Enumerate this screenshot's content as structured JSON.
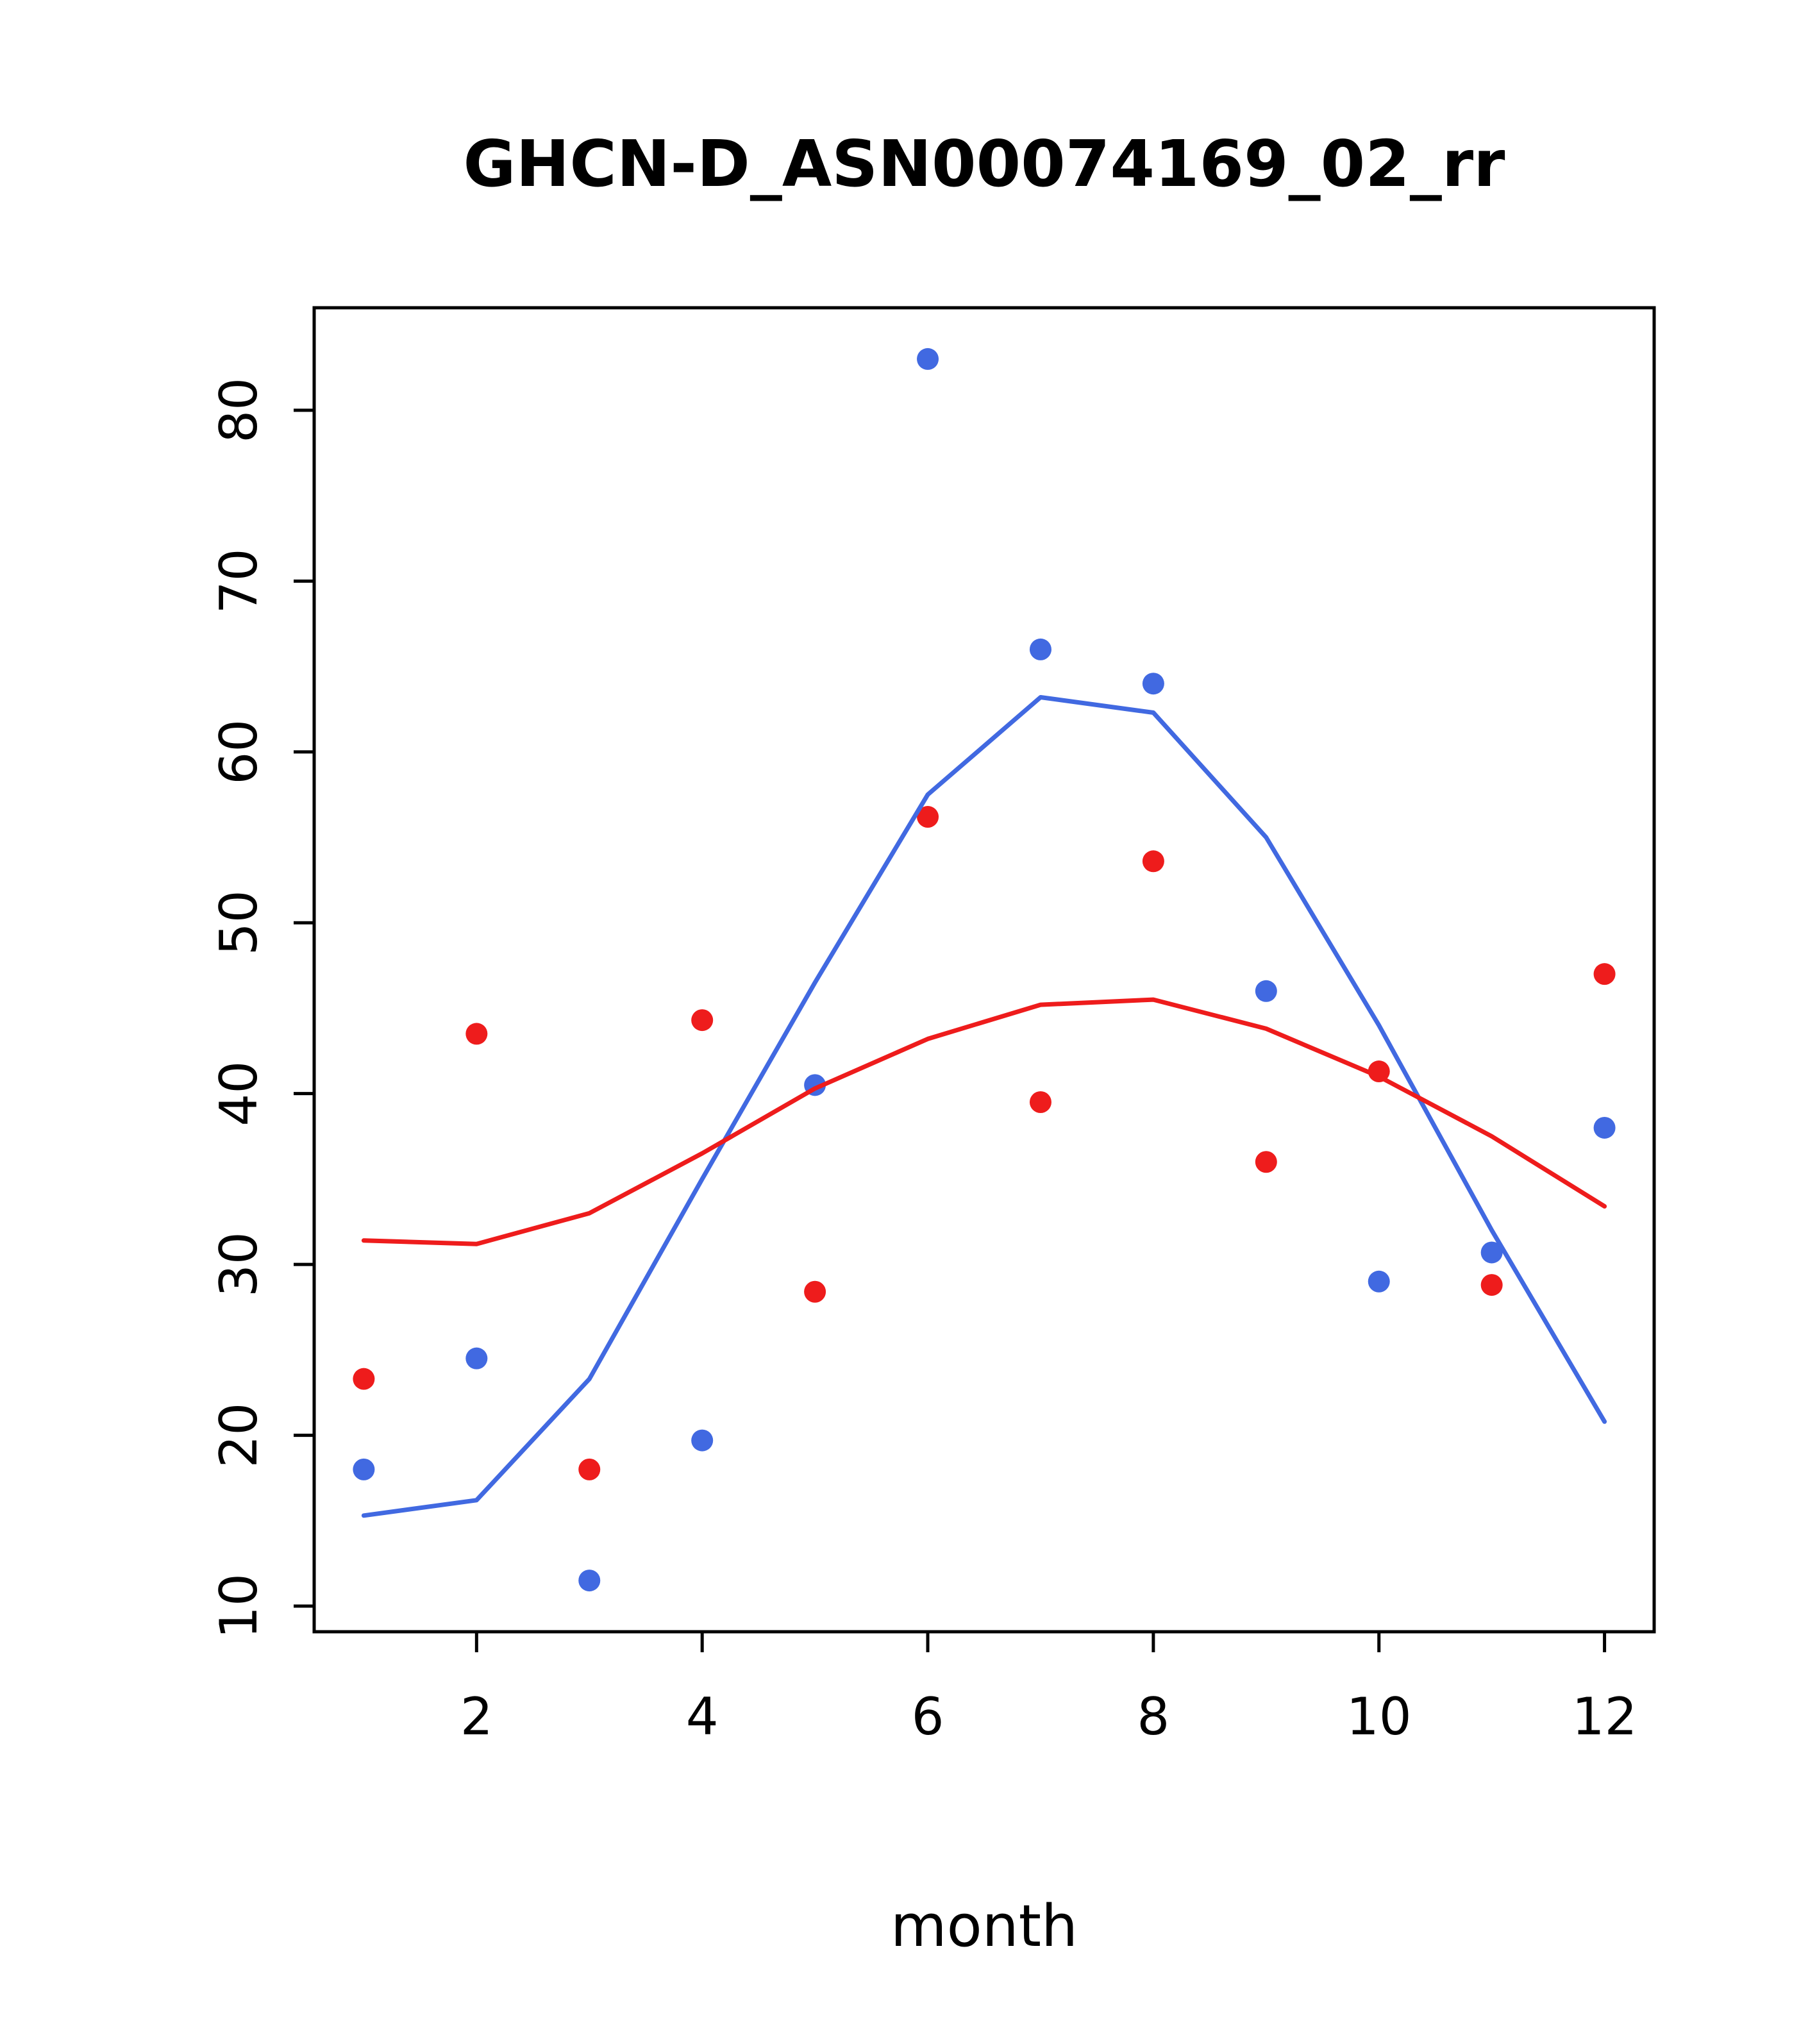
{
  "page": {
    "background": "#ffffff"
  },
  "chart_data": {
    "type": "scatter",
    "title": "GHCN-D_ASN00074169_02_rr",
    "xlabel": "month",
    "ylabel": "",
    "xlim": [
      0.56,
      12.44
    ],
    "ylim": [
      8.5,
      86
    ],
    "x_ticks": [
      2,
      4,
      6,
      8,
      10,
      12
    ],
    "y_ticks": [
      10,
      20,
      30,
      40,
      50,
      60,
      70,
      80
    ],
    "x": [
      1,
      2,
      3,
      4,
      5,
      6,
      7,
      8,
      9,
      10,
      11,
      12
    ],
    "grid": false,
    "legend": "none",
    "colors": {
      "blue": "#4169E1",
      "red": "#EE1C1C",
      "axis": "#000000"
    },
    "series": [
      {
        "name": "blue-points",
        "role": "points",
        "color": "#4169E1",
        "values": [
          18,
          24.5,
          11.5,
          19.7,
          40.5,
          83,
          66,
          64,
          46,
          29,
          30.7,
          38
        ]
      },
      {
        "name": "red-points",
        "role": "points",
        "color": "#EE1C1C",
        "values": [
          23.3,
          43.5,
          18,
          44.3,
          28.4,
          56.2,
          39.5,
          53.6,
          36,
          41.3,
          28.8,
          47
        ]
      },
      {
        "name": "blue-smooth-line",
        "role": "line",
        "color": "#4169E1",
        "values": [
          15.3,
          16.2,
          23.3,
          35,
          46.5,
          57.5,
          63.2,
          62.3,
          55,
          44,
          32,
          20.8
        ]
      },
      {
        "name": "red-smooth-line",
        "role": "line",
        "color": "#EE1C1C",
        "values": [
          31.4,
          31.2,
          33,
          36.5,
          40.3,
          43.2,
          45.2,
          45.5,
          43.8,
          41,
          37.5,
          33.4
        ]
      }
    ]
  }
}
